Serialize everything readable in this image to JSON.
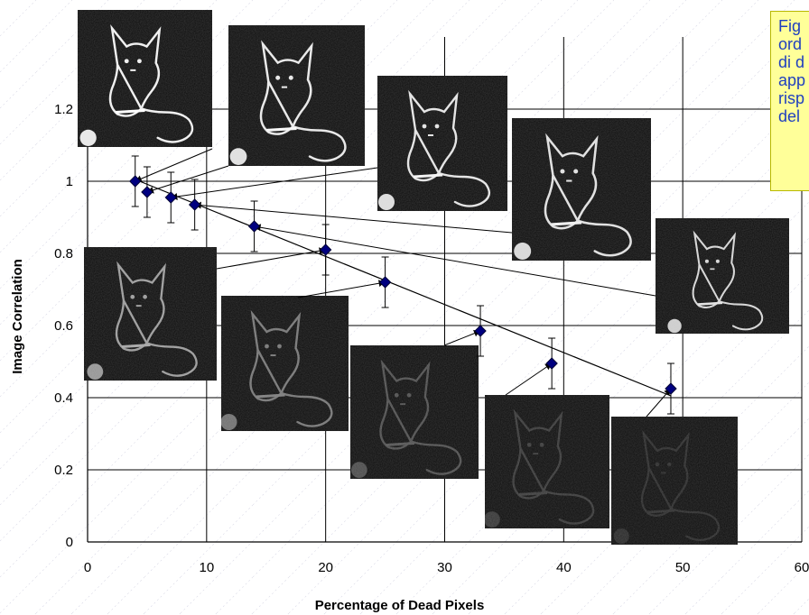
{
  "chart_data": {
    "type": "scatter",
    "title": "",
    "xlabel": "Percentage of Dead Pixels",
    "ylabel": "Image Correlation",
    "xlim": [
      0,
      60
    ],
    "ylim": [
      0,
      1.4
    ],
    "x_ticks": [
      0,
      10,
      20,
      30,
      40,
      50,
      60
    ],
    "y_ticks": [
      0,
      0.2,
      0.4,
      0.6,
      0.8,
      1,
      1.2
    ],
    "x_tick_labels": [
      "0",
      "10",
      "20",
      "30",
      "40",
      "50",
      "60"
    ],
    "y_tick_labels": [
      "0",
      "0.2",
      "0.4",
      "0.6",
      "0.8",
      "1",
      "1.2"
    ],
    "grid": true,
    "series": [
      {
        "color": "#000080",
        "marker": "diamond",
        "x": [
          4,
          5,
          7,
          9,
          14,
          20,
          25,
          33,
          39,
          49
        ],
        "y": [
          1.0,
          0.97,
          0.955,
          0.935,
          0.875,
          0.81,
          0.72,
          0.585,
          0.495,
          0.425
        ],
        "error": [
          0.07,
          0.07,
          0.07,
          0.07,
          0.07,
          0.07,
          0.07,
          0.07,
          0.07,
          0.07
        ]
      }
    ],
    "trendline": {
      "x": [
        4,
        49
      ],
      "y": [
        1.005,
        0.405
      ]
    },
    "image_insets": [
      {
        "icon": "cat-image-icon",
        "point_index": 0,
        "brightness": 1.0
      },
      {
        "icon": "cat-image-icon",
        "point_index": 1,
        "brightness": 0.97
      },
      {
        "icon": "cat-image-icon",
        "point_index": 2,
        "brightness": 0.95
      },
      {
        "icon": "cat-image-icon",
        "point_index": 3,
        "brightness": 0.93
      },
      {
        "icon": "cat-image-icon",
        "point_index": 4,
        "brightness": 0.88
      },
      {
        "icon": "cat-image-icon",
        "point_index": 5,
        "brightness": 0.62
      },
      {
        "icon": "cat-image-icon",
        "point_index": 6,
        "brightness": 0.45
      },
      {
        "icon": "cat-image-icon",
        "point_index": 7,
        "brightness": 0.28
      },
      {
        "icon": "cat-image-icon",
        "point_index": 8,
        "brightness": 0.18
      },
      {
        "icon": "cat-image-icon",
        "point_index": 9,
        "brightness": 0.12
      }
    ]
  },
  "note": {
    "lines": [
      "Fig",
      "ord",
      "di d",
      "app",
      "risp",
      "del"
    ],
    "background": "#ffff99",
    "text_color": "#1f3fbf"
  }
}
